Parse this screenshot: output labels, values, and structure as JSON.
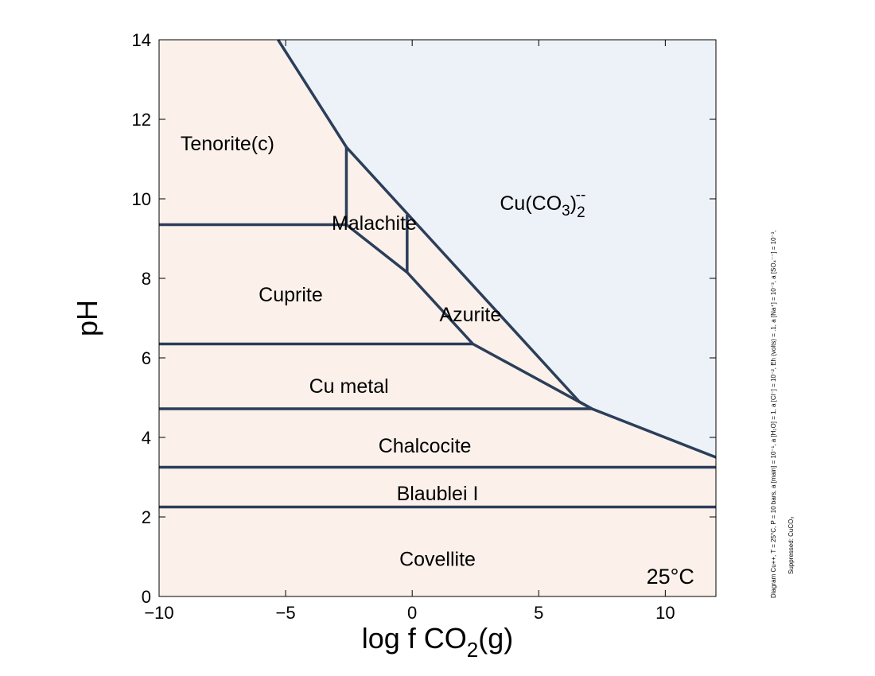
{
  "chart_data": {
    "type": "phase-diagram",
    "xlabel_parts": [
      "log f CO",
      "2",
      "(g)"
    ],
    "ylabel": "pH",
    "xlim": [
      -10,
      12
    ],
    "ylim": [
      0,
      14
    ],
    "xticks": [
      -10,
      -5,
      0,
      5,
      10
    ],
    "yticks": [
      0,
      2,
      4,
      6,
      8,
      10,
      12,
      14
    ],
    "xtick_labels": [
      "−10",
      "−5",
      "0",
      "5",
      "10"
    ],
    "colors": {
      "solid_fill": "#fbf1ea",
      "aqueous_fill": "#edf1f8",
      "boundary": "#2b3e5a"
    },
    "aqueous_region": [
      [
        -5.3,
        14
      ],
      [
        12,
        14
      ],
      [
        12,
        3.5
      ],
      [
        7.1,
        4.72
      ],
      [
        6.6,
        4.9
      ],
      [
        -2.6,
        11.3
      ]
    ],
    "boundaries": [
      [
        [
          -5.3,
          14
        ],
        [
          -2.6,
          11.3
        ],
        [
          6.6,
          4.9
        ],
        [
          7.1,
          4.72
        ],
        [
          12,
          3.5
        ]
      ],
      [
        [
          -2.6,
          11.3
        ],
        [
          -2.6,
          9.35
        ]
      ],
      [
        [
          -10,
          9.35
        ],
        [
          -2.6,
          9.35
        ],
        [
          -0.2,
          8.15
        ],
        [
          2.4,
          6.35
        ],
        [
          7.1,
          4.72
        ]
      ],
      [
        [
          -0.2,
          9.6
        ],
        [
          -0.2,
          8.15
        ]
      ],
      [
        [
          -10,
          6.35
        ],
        [
          2.4,
          6.35
        ]
      ],
      [
        [
          -10,
          4.72
        ],
        [
          7.1,
          4.72
        ]
      ],
      [
        [
          -10,
          3.25
        ],
        [
          12,
          3.25
        ]
      ],
      [
        [
          -10,
          2.25
        ],
        [
          12,
          2.25
        ]
      ]
    ],
    "regions": [
      {
        "name": "Tenorite(c)",
        "x": -7.3,
        "y": 11.4
      },
      {
        "name": "Malachite",
        "x": -1.5,
        "y": 9.4
      },
      {
        "name": "Cuprite",
        "x": -4.8,
        "y": 7.6
      },
      {
        "name": "Azurite",
        "x": 2.3,
        "y": 7.1
      },
      {
        "name": "Cu metal",
        "x": -2.5,
        "y": 5.3
      },
      {
        "name": "Chalcocite",
        "x": 0.5,
        "y": 3.8
      },
      {
        "name": "Blaublei I",
        "x": 1.0,
        "y": 2.6
      },
      {
        "name": "Covellite",
        "x": 1.0,
        "y": 0.95
      }
    ],
    "aqueous_label": {
      "base": "Cu(CO",
      "sub": "3",
      "close": ")",
      "sub2": "2",
      "sup": "--",
      "x": 5.6,
      "y": 9.9
    },
    "temperature_label": {
      "text": "25°C",
      "x": 10.2,
      "y": 0.5
    },
    "side_note_line1": "Diagram Cu++, T = 25°C, P = 10 bars, a [main] = 10⁻¹, a [H₂O] = 1, a [Cl⁻] = 10⁻², Eh (volts) = .1, a [Na⁺] = 10⁻³, a [SO₄⁻⁻] = 10⁻³,",
    "side_note_line2": "Suppressed: CuCO₃"
  }
}
